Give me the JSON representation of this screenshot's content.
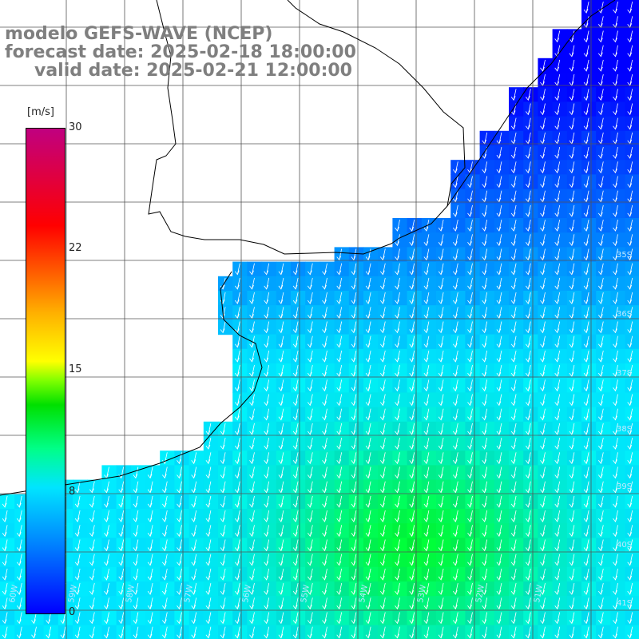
{
  "title": {
    "line1": "modelo GEFS-WAVE (NCEP)",
    "line2": "forecast date: 2025-02-18 18:00:00",
    "line3": "valid date: 2025-02-21 12:00:00"
  },
  "colorbar": {
    "unit": "[m/s]",
    "ticks": [
      "30",
      "22",
      "15",
      "8",
      "0"
    ],
    "colors": [
      "#0000ff",
      "#0080ff",
      "#00e5ff",
      "#00ff88",
      "#00e000",
      "#ffff00",
      "#ff6000",
      "#ff0000",
      "#c00080"
    ]
  },
  "graticule": {
    "lat_labels": [
      "35S",
      "36S",
      "37S",
      "38S",
      "39S",
      "40S",
      "41S"
    ],
    "lon_labels": [
      "60W",
      "59W",
      "58W",
      "57W",
      "56W",
      "55W",
      "54W",
      "53W",
      "52W",
      "51W"
    ]
  },
  "field": {
    "wind_direction": "from north (arrows pointing south)",
    "range_ms": [
      0,
      30
    ]
  }
}
